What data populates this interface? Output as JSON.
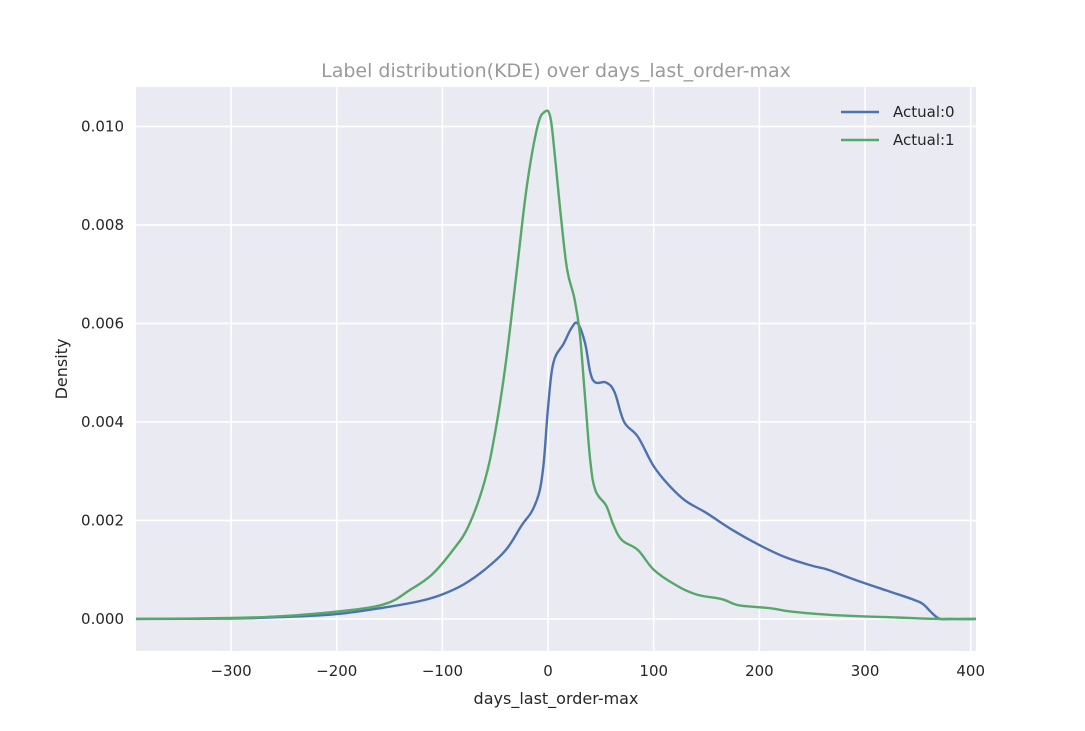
{
  "chart_data": {
    "type": "line",
    "title": "Label distribution(KDE) over days_last_order-max",
    "xlabel": "days_last_order-max",
    "ylabel": "Density",
    "xlim": [
      -390,
      405
    ],
    "ylim": [
      -0.00065,
      0.0108
    ],
    "xticks": [
      -300,
      -200,
      -100,
      0,
      100,
      200,
      300,
      400
    ],
    "xtick_labels": [
      "−300",
      "−200",
      "−100",
      "0",
      "100",
      "200",
      "300",
      "400"
    ],
    "yticks": [
      0.0,
      0.002,
      0.004,
      0.006,
      0.008,
      0.01
    ],
    "ytick_labels": [
      "0.000",
      "0.002",
      "0.004",
      "0.006",
      "0.008",
      "0.010"
    ],
    "grid": true,
    "legend_position": "top-right",
    "series": [
      {
        "name": "Actual:0",
        "color": "#4c72b0",
        "points": [
          [
            -390,
            0.0
          ],
          [
            -300,
            1e-05
          ],
          [
            -250,
            4e-05
          ],
          [
            -200,
            0.0001
          ],
          [
            -150,
            0.00025
          ],
          [
            -120,
            0.00037
          ],
          [
            -100,
            0.0005
          ],
          [
            -80,
            0.0007
          ],
          [
            -60,
            0.001
          ],
          [
            -40,
            0.0014
          ],
          [
            -25,
            0.0019
          ],
          [
            -15,
            0.0022
          ],
          [
            -8,
            0.0026
          ],
          [
            -4,
            0.0032
          ],
          [
            0,
            0.0043
          ],
          [
            5,
            0.0052
          ],
          [
            15,
            0.0056
          ],
          [
            22,
            0.0059
          ],
          [
            28,
            0.006
          ],
          [
            35,
            0.0056
          ],
          [
            40,
            0.005
          ],
          [
            45,
            0.0048
          ],
          [
            55,
            0.0048
          ],
          [
            63,
            0.0046
          ],
          [
            72,
            0.004
          ],
          [
            85,
            0.0037
          ],
          [
            100,
            0.0031
          ],
          [
            115,
            0.0027
          ],
          [
            130,
            0.0024
          ],
          [
            150,
            0.00215
          ],
          [
            175,
            0.0018
          ],
          [
            200,
            0.0015
          ],
          [
            225,
            0.00125
          ],
          [
            250,
            0.00108
          ],
          [
            265,
            0.001
          ],
          [
            290,
            0.0008
          ],
          [
            320,
            0.00058
          ],
          [
            345,
            0.0004
          ],
          [
            355,
            0.0003
          ],
          [
            362,
            0.00015
          ],
          [
            370,
            1e-05
          ],
          [
            380,
            0.0
          ],
          [
            405,
            0.0
          ]
        ]
      },
      {
        "name": "Actual:1",
        "color": "#55a868",
        "points": [
          [
            -390,
            0.0
          ],
          [
            -300,
            2e-05
          ],
          [
            -250,
            6e-05
          ],
          [
            -200,
            0.00015
          ],
          [
            -155,
            0.0003
          ],
          [
            -130,
            0.0006
          ],
          [
            -110,
            0.0009
          ],
          [
            -90,
            0.0014
          ],
          [
            -75,
            0.0019
          ],
          [
            -60,
            0.0028
          ],
          [
            -50,
            0.0038
          ],
          [
            -40,
            0.0052
          ],
          [
            -30,
            0.007
          ],
          [
            -20,
            0.0088
          ],
          [
            -10,
            0.01
          ],
          [
            -3,
            0.0103
          ],
          [
            2,
            0.0102
          ],
          [
            6,
            0.0095
          ],
          [
            12,
            0.0082
          ],
          [
            18,
            0.0071
          ],
          [
            25,
            0.0065
          ],
          [
            30,
            0.0058
          ],
          [
            35,
            0.0045
          ],
          [
            40,
            0.0032
          ],
          [
            45,
            0.0026
          ],
          [
            55,
            0.0023
          ],
          [
            62,
            0.0019
          ],
          [
            70,
            0.0016
          ],
          [
            85,
            0.0014
          ],
          [
            100,
            0.001
          ],
          [
            120,
            0.0007
          ],
          [
            140,
            0.0005
          ],
          [
            165,
            0.0004
          ],
          [
            180,
            0.00028
          ],
          [
            210,
            0.00022
          ],
          [
            230,
            0.00015
          ],
          [
            270,
            8e-05
          ],
          [
            330,
            3e-05
          ],
          [
            370,
            0.0
          ],
          [
            405,
            0.0
          ]
        ]
      }
    ]
  }
}
